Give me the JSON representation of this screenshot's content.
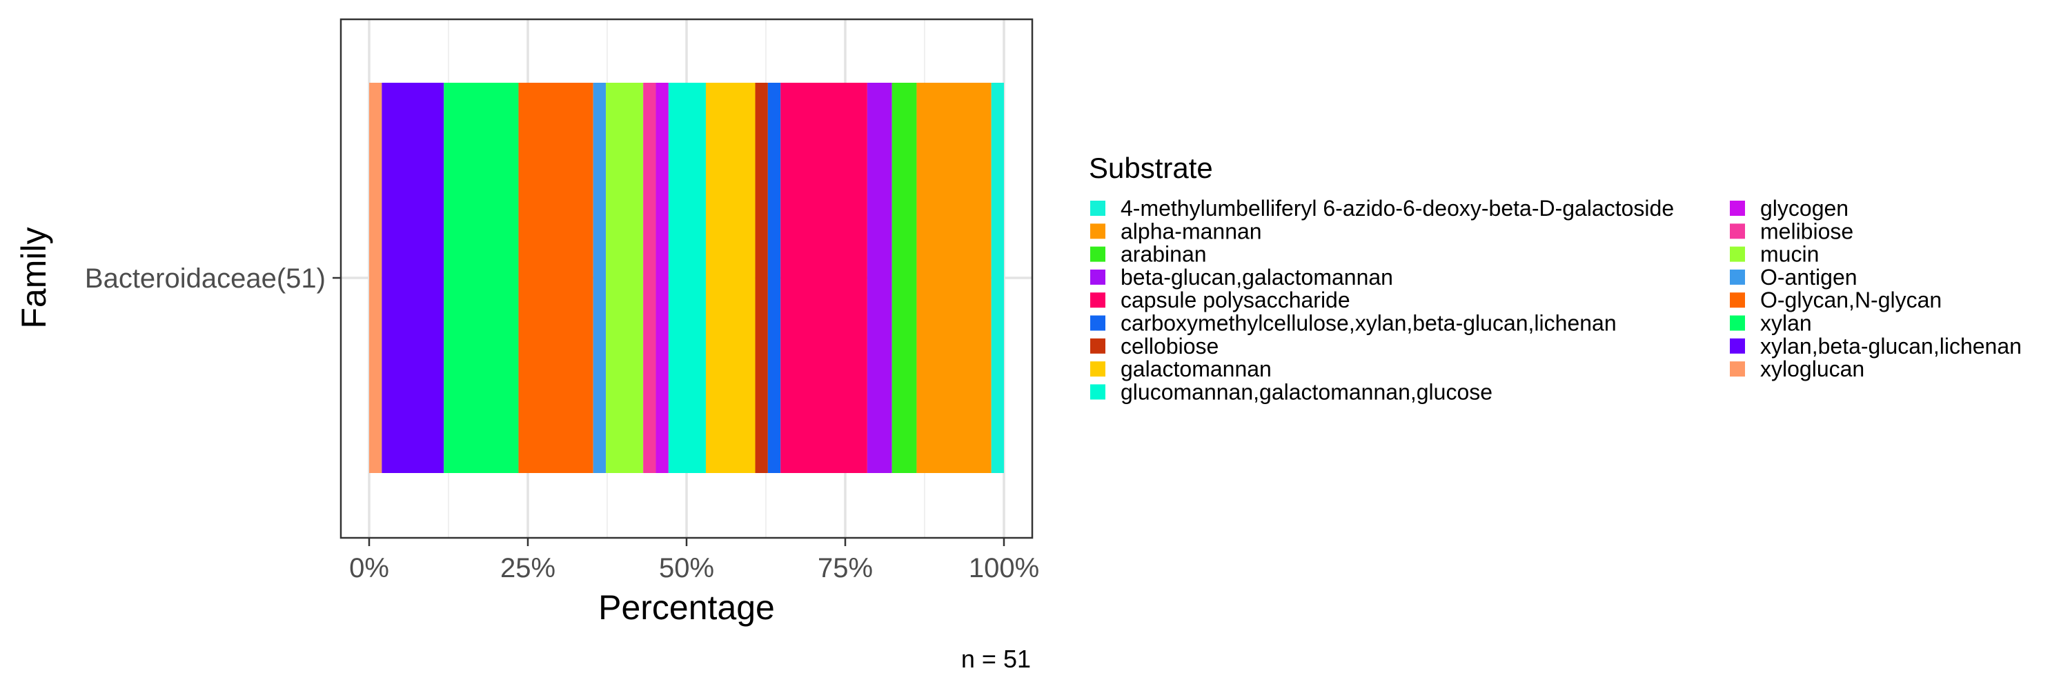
{
  "chart_data": {
    "type": "bar",
    "orientation": "horizontal",
    "stacked": true,
    "position": "fill",
    "categories": [
      "Bacteroidaceae(51)"
    ],
    "xlabel": "Percentage",
    "ylabel": "Family",
    "caption": "n = 51",
    "xlim": [
      0,
      1
    ],
    "x_ticks": [
      {
        "value": 0,
        "label": "0%"
      },
      {
        "value": 0.25,
        "label": "25%"
      },
      {
        "value": 0.5,
        "label": "50%"
      },
      {
        "value": 0.75,
        "label": "75%"
      },
      {
        "value": 1.0,
        "label": "100%"
      }
    ],
    "grid": true,
    "legend": {
      "title": "Substrate",
      "placement": "right",
      "columns": 2
    },
    "series": [
      {
        "name": "4-methylumbelliferyl 6-azido-6-deoxy-beta-D-galactoside",
        "color": "#13F2D7",
        "values": [
          0.02
        ]
      },
      {
        "name": "alpha-mannan",
        "color": "#FF9800",
        "values": [
          0.118
        ]
      },
      {
        "name": "arabinan",
        "color": "#33EE1B",
        "values": [
          0.039
        ]
      },
      {
        "name": "beta-glucan,galactomannan",
        "color": "#A410F5",
        "values": [
          0.039
        ]
      },
      {
        "name": "capsule polysaccharide",
        "color": "#FF0066",
        "values": [
          0.137
        ]
      },
      {
        "name": "carboxymethylcellulose,xylan,beta-glucan,lichenan",
        "color": "#1266F2",
        "values": [
          0.02
        ]
      },
      {
        "name": "cellobiose",
        "color": "#C9340A",
        "values": [
          0.02
        ]
      },
      {
        "name": "galactomannan",
        "color": "#FFCC00",
        "values": [
          0.078
        ]
      },
      {
        "name": "glucomannan,galactomannan,glucose",
        "color": "#00FAD2",
        "values": [
          0.059
        ]
      },
      {
        "name": "glycogen",
        "color": "#CC0FEE",
        "values": [
          0.02
        ]
      },
      {
        "name": "melibiose",
        "color": "#F53A9E",
        "values": [
          0.02
        ]
      },
      {
        "name": "mucin",
        "color": "#99FF33",
        "values": [
          0.059
        ]
      },
      {
        "name": "O-antigen",
        "color": "#3D9BEB",
        "values": [
          0.02
        ]
      },
      {
        "name": "O-glycan,N-glycan",
        "color": "#FF6600",
        "values": [
          0.118
        ]
      },
      {
        "name": "xylan",
        "color": "#00FF66",
        "values": [
          0.118
        ]
      },
      {
        "name": "xylan,beta-glucan,lichenan",
        "color": "#6600FF",
        "values": [
          0.098
        ]
      },
      {
        "name": "xyloglucan",
        "color": "#FF9966",
        "values": [
          0.02
        ]
      }
    ]
  }
}
